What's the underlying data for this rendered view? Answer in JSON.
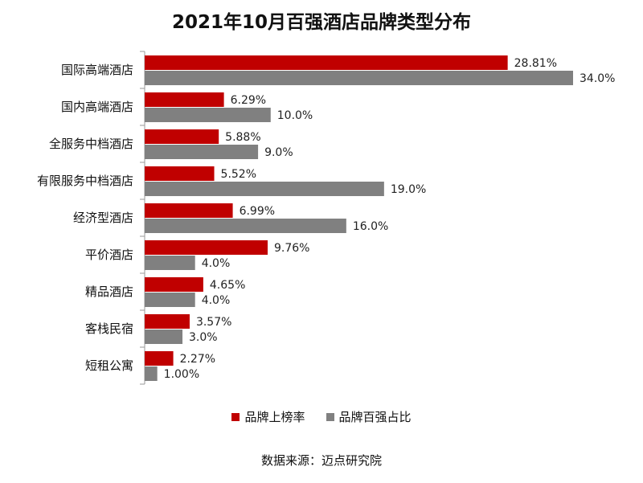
{
  "chart_data": {
    "type": "bar",
    "orientation": "horizontal",
    "title": "2021年10月百强酒店品牌类型分布",
    "categories": [
      "国际高端酒店",
      "国内高端酒店",
      "全服务中档酒店",
      "有限服务中档酒店",
      "经济型酒店",
      "平价酒店",
      "精品酒店",
      "客栈民宿",
      "短租公寓"
    ],
    "series": [
      {
        "name": "品牌上榜率",
        "color": "#C00000",
        "values": [
          28.81,
          6.29,
          5.88,
          5.52,
          6.99,
          9.76,
          4.65,
          3.57,
          2.27
        ],
        "labels": [
          "28.81%",
          "6.29%",
          "5.88%",
          "5.52%",
          "6.99%",
          "9.76%",
          "4.65%",
          "3.57%",
          "2.27%"
        ]
      },
      {
        "name": "品牌百强占比",
        "color": "#808080",
        "values": [
          34.0,
          10.0,
          9.0,
          19.0,
          16.0,
          4.0,
          4.0,
          3.0,
          1.0
        ],
        "labels": [
          "34.0%",
          "10.0%",
          "9.0%",
          "19.0%",
          "16.0%",
          "4.0%",
          "4.0%",
          "3.0%",
          "1.00%"
        ]
      }
    ],
    "xlim": [
      0,
      40
    ],
    "grid": false,
    "legend_position": "bottom"
  },
  "source": "数据来源：迈点研究院"
}
